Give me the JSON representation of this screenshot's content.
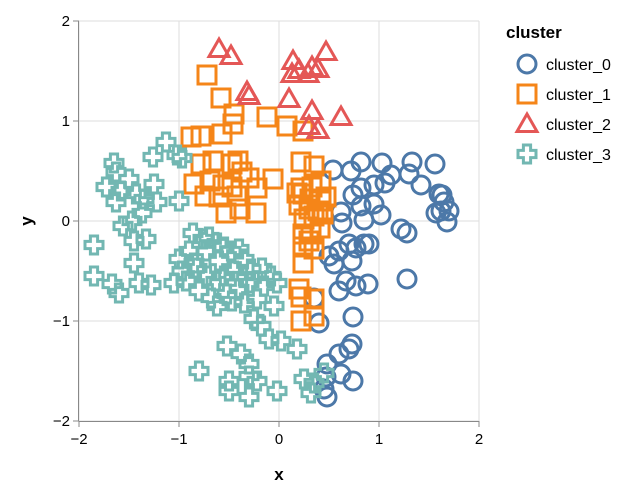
{
  "chart_data": {
    "type": "scatter",
    "title": "",
    "xlabel": "x",
    "ylabel": "y",
    "xlim": [
      -2,
      2
    ],
    "ylim": [
      -2,
      2
    ],
    "x_ticks": [
      "−2",
      "−1",
      "0",
      "1",
      "2"
    ],
    "y_ticks": [
      "2",
      "1",
      "0",
      "−1",
      "−2"
    ],
    "grid": true,
    "legend": {
      "title": "cluster",
      "placement": "top-right"
    },
    "series": [
      {
        "name": "cluster_0",
        "shape": "circle",
        "color": "#4c78a8",
        "points": [
          [
            0.54,
            0.51
          ],
          [
            0.72,
            0.5
          ],
          [
            0.82,
            0.59
          ],
          [
            1.03,
            0.58
          ],
          [
            1.12,
            0.46
          ],
          [
            1.33,
            0.59
          ],
          [
            1.56,
            0.57
          ],
          [
            1.3,
            0.47
          ],
          [
            1.42,
            0.36
          ],
          [
            1.6,
            0.27
          ],
          [
            1.63,
            0.26
          ],
          [
            1.65,
            0.19
          ],
          [
            1.57,
            0.08
          ],
          [
            1.7,
            0.1
          ],
          [
            1.62,
            0.1
          ],
          [
            1.68,
            -0.01
          ],
          [
            1.06,
            0.38
          ],
          [
            0.95,
            0.36
          ],
          [
            0.82,
            0.33
          ],
          [
            0.74,
            0.26
          ],
          [
            0.82,
            0.15
          ],
          [
            0.62,
            0.09
          ],
          [
            0.95,
            0.17
          ],
          [
            1.02,
            0.06
          ],
          [
            0.85,
            0.01
          ],
          [
            0.63,
            -0.02
          ],
          [
            1.22,
            -0.08
          ],
          [
            1.28,
            -0.12
          ],
          [
            0.5,
            -0.35
          ],
          [
            0.55,
            -0.43
          ],
          [
            0.6,
            -0.3
          ],
          [
            0.7,
            -0.23
          ],
          [
            0.77,
            -0.27
          ],
          [
            0.85,
            -0.23
          ],
          [
            0.9,
            -0.23
          ],
          [
            0.73,
            -0.4
          ],
          [
            0.67,
            -0.6
          ],
          [
            0.6,
            -0.7
          ],
          [
            0.77,
            -0.65
          ],
          [
            0.89,
            -0.63
          ],
          [
            1.28,
            -0.58
          ],
          [
            0.35,
            -0.77
          ],
          [
            0.4,
            -1.02
          ],
          [
            0.74,
            -0.96
          ],
          [
            0.73,
            -1.23
          ],
          [
            0.7,
            -1.28
          ],
          [
            0.6,
            -1.33
          ],
          [
            0.48,
            -1.43
          ],
          [
            0.47,
            -1.56
          ],
          [
            0.62,
            -1.53
          ],
          [
            0.74,
            -1.6
          ],
          [
            0.45,
            -1.68
          ],
          [
            0.48,
            -1.76
          ]
        ]
      },
      {
        "name": "cluster_1",
        "shape": "square",
        "color": "#f58518",
        "points": [
          [
            -0.72,
            1.46
          ],
          [
            -0.58,
            1.23
          ],
          [
            -0.45,
            1.07
          ],
          [
            -0.57,
            0.87
          ],
          [
            -0.78,
            0.85
          ],
          [
            -0.88,
            0.84
          ],
          [
            -0.46,
            0.97
          ],
          [
            -0.12,
            1.04
          ],
          [
            0.08,
            0.95
          ],
          [
            0.24,
            0.9
          ],
          [
            -0.66,
            0.6
          ],
          [
            -0.47,
            0.57
          ],
          [
            -0.37,
            0.49
          ],
          [
            -0.41,
            0.6
          ],
          [
            -0.69,
            0.4
          ],
          [
            -0.56,
            0.36
          ],
          [
            -0.42,
            0.25
          ],
          [
            -0.3,
            0.43
          ],
          [
            -0.22,
            0.33
          ],
          [
            -0.06,
            0.42
          ],
          [
            -0.47,
            0.34
          ],
          [
            -0.6,
            0.24
          ],
          [
            -0.74,
            0.25
          ],
          [
            -0.85,
            0.37
          ],
          [
            -0.78,
            0.57
          ],
          [
            -0.53,
            0.08
          ],
          [
            -0.39,
            0.12
          ],
          [
            -0.23,
            0.08
          ],
          [
            0.22,
            0.59
          ],
          [
            0.35,
            0.55
          ],
          [
            0.42,
            0.4
          ],
          [
            0.33,
            0.34
          ],
          [
            0.22,
            0.33
          ],
          [
            0.18,
            0.28
          ],
          [
            0.24,
            0.27
          ],
          [
            0.31,
            0.22
          ],
          [
            0.42,
            0.2
          ],
          [
            0.2,
            0.16
          ],
          [
            0.3,
            0.12
          ],
          [
            0.25,
            0.02
          ],
          [
            0.39,
            0.1
          ],
          [
            0.35,
            0.05
          ],
          [
            0.44,
            0.07
          ],
          [
            0.47,
            0.24
          ],
          [
            0.41,
            -0.07
          ],
          [
            0.32,
            -0.13
          ],
          [
            0.24,
            -0.13
          ],
          [
            0.3,
            -0.2
          ],
          [
            0.24,
            -0.26
          ],
          [
            0.35,
            -0.28
          ],
          [
            0.24,
            -0.42
          ],
          [
            0.2,
            -0.68
          ],
          [
            0.22,
            -0.76
          ],
          [
            0.35,
            -0.78
          ],
          [
            0.22,
            -1.0
          ],
          [
            0.35,
            -0.95
          ]
        ]
      },
      {
        "name": "cluster_2",
        "shape": "triangle",
        "color": "#e45756",
        "points": [
          [
            -0.6,
            1.72
          ],
          [
            -0.48,
            1.65
          ],
          [
            0.14,
            1.6
          ],
          [
            0.2,
            1.51
          ],
          [
            0.33,
            1.54
          ],
          [
            0.47,
            1.69
          ],
          [
            0.39,
            1.52
          ],
          [
            0.29,
            1.47
          ],
          [
            0.13,
            1.47
          ],
          [
            -0.32,
            1.29
          ],
          [
            -0.3,
            1.25
          ],
          [
            0.1,
            1.22
          ],
          [
            0.33,
            1.1
          ],
          [
            0.62,
            1.04
          ],
          [
            0.3,
            0.95
          ],
          [
            0.39,
            0.91
          ]
        ]
      },
      {
        "name": "cluster_3",
        "shape": "cross",
        "color": "#72b7b2",
        "points": [
          [
            -1.13,
            0.79
          ],
          [
            -1.26,
            0.64
          ],
          [
            -1.02,
            0.66
          ],
          [
            -0.97,
            0.63
          ],
          [
            -1.65,
            0.58
          ],
          [
            -1.63,
            0.49
          ],
          [
            -1.5,
            0.42
          ],
          [
            -1.58,
            0.3
          ],
          [
            -1.73,
            0.34
          ],
          [
            -1.43,
            0.27
          ],
          [
            -1.35,
            0.22
          ],
          [
            -1.22,
            0.19
          ],
          [
            -1.0,
            0.2
          ],
          [
            -1.25,
            0.37
          ],
          [
            -1.63,
            0.19
          ],
          [
            -1.37,
            0.08
          ],
          [
            -1.47,
            0.0
          ],
          [
            -1.56,
            -0.05
          ],
          [
            -1.85,
            -0.24
          ],
          [
            -1.45,
            -0.2
          ],
          [
            -1.33,
            -0.18
          ],
          [
            -1.45,
            -0.42
          ],
          [
            -1.4,
            -0.62
          ],
          [
            -1.67,
            -0.63
          ],
          [
            -1.85,
            -0.55
          ],
          [
            -1.6,
            -0.72
          ],
          [
            -1.28,
            -0.64
          ],
          [
            -0.86,
            -0.12
          ],
          [
            -0.76,
            -0.18
          ],
          [
            -0.7,
            -0.16
          ],
          [
            -0.62,
            -0.22
          ],
          [
            -0.55,
            -0.26
          ],
          [
            -0.48,
            -0.3
          ],
          [
            -0.4,
            -0.28
          ],
          [
            -0.35,
            -0.38
          ],
          [
            -0.6,
            -0.4
          ],
          [
            -0.73,
            -0.3
          ],
          [
            -0.9,
            -0.3
          ],
          [
            -0.85,
            -0.42
          ],
          [
            -1.0,
            -0.38
          ],
          [
            -0.97,
            -0.5
          ],
          [
            -0.82,
            -0.47
          ],
          [
            -0.72,
            -0.55
          ],
          [
            -0.63,
            -0.6
          ],
          [
            -0.55,
            -0.55
          ],
          [
            -0.45,
            -0.5
          ],
          [
            -0.36,
            -0.55
          ],
          [
            -0.28,
            -0.48
          ],
          [
            -0.17,
            -0.47
          ],
          [
            -0.08,
            -0.55
          ],
          [
            -1.05,
            -0.62
          ],
          [
            -0.93,
            -0.6
          ],
          [
            -0.8,
            -0.7
          ],
          [
            -0.68,
            -0.77
          ],
          [
            -0.52,
            -0.73
          ],
          [
            -0.4,
            -0.68
          ],
          [
            -0.3,
            -0.62
          ],
          [
            -0.15,
            -0.65
          ],
          [
            -0.02,
            -0.62
          ],
          [
            -0.62,
            -0.85
          ],
          [
            -0.47,
            -0.8
          ],
          [
            -0.35,
            -0.82
          ],
          [
            -0.22,
            -0.78
          ],
          [
            -0.05,
            -0.85
          ],
          [
            -0.25,
            -0.98
          ],
          [
            -0.18,
            -1.05
          ],
          [
            -0.1,
            -1.18
          ],
          [
            0.02,
            -1.2
          ],
          [
            0.18,
            -1.28
          ],
          [
            -0.52,
            -1.25
          ],
          [
            -0.38,
            -1.33
          ],
          [
            -0.3,
            -1.43
          ],
          [
            -0.8,
            -1.5
          ],
          [
            -0.5,
            -1.6
          ],
          [
            -0.3,
            -1.55
          ],
          [
            -0.22,
            -1.6
          ],
          [
            -0.5,
            -1.7
          ],
          [
            -0.3,
            -1.76
          ],
          [
            -0.02,
            -1.7
          ],
          [
            0.25,
            -1.58
          ],
          [
            0.35,
            -1.62
          ],
          [
            0.45,
            -1.52
          ],
          [
            0.32,
            -1.72
          ]
        ]
      }
    ]
  }
}
